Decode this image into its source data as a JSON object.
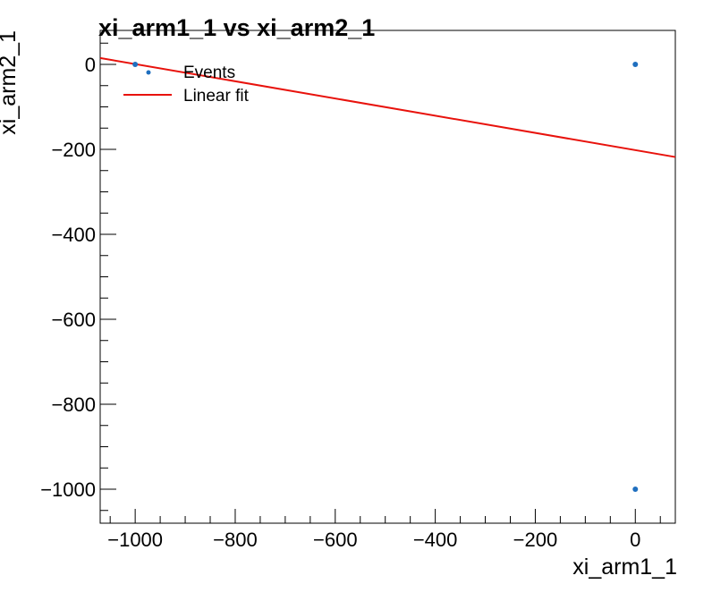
{
  "chart_data": {
    "type": "scatter",
    "title": "xi_arm1_1 vs xi_arm2_1",
    "xlabel": "xi_arm1_1",
    "ylabel": "xi_arm2_1",
    "xlim": [
      -1070,
      80
    ],
    "ylim": [
      -1080,
      80
    ],
    "x_ticks": [
      -1000,
      -800,
      -600,
      -400,
      -200,
      0
    ],
    "y_ticks": [
      -1000,
      -800,
      -600,
      -400,
      -200,
      0
    ],
    "x_tick_labels": [
      "−1000",
      "−800",
      "−600",
      "−400",
      "−200",
      "0"
    ],
    "y_tick_labels": [
      "−1000",
      "−800",
      "−600",
      "−400",
      "−200",
      "0"
    ],
    "grid": false,
    "legend_position": "top-left",
    "series": [
      {
        "name": "Events",
        "kind": "scatter",
        "color": "#1f6fbf",
        "points": [
          [
            -1000,
            0
          ],
          [
            0,
            0
          ],
          [
            0,
            -1000
          ]
        ]
      },
      {
        "name": "Linear fit",
        "kind": "line",
        "color": "#e8120c",
        "points": [
          [
            -1070,
            15
          ],
          [
            80,
            -218
          ]
        ]
      }
    ]
  }
}
